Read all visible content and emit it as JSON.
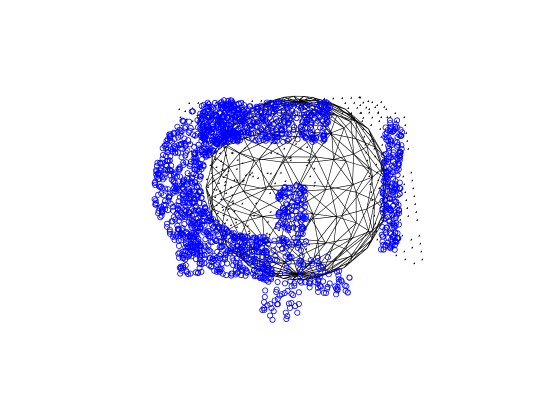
{
  "figure": {
    "background": "#ffffff"
  },
  "colors": {
    "mesh": "#000000",
    "points_3d": "#0000ff",
    "grid_markers": "#000000"
  },
  "legend": {
    "shown": false
  },
  "axes": {
    "shown": false
  },
  "marker_types": {
    "points_3d": "circle-outline",
    "grid_markers": "filled-diamond"
  },
  "elements": {
    "sphere": "triangulated-sphere-wireframe",
    "point_cloud": "point-cloud-shell",
    "marker_grid": "square-marker-grid"
  }
}
